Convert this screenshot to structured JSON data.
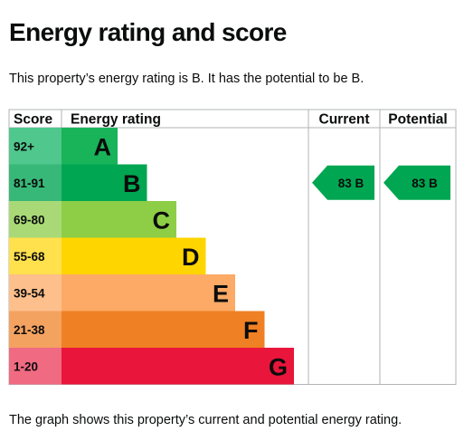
{
  "heading": "Energy rating and score",
  "intro_text": "This property’s energy rating is B. It has the potential to be B.",
  "caption": "The graph shows this property’s current and potential energy rating.",
  "chart_data": {
    "type": "bar",
    "columns": [
      "Score",
      "Energy rating",
      "Current",
      "Potential"
    ],
    "bands": [
      {
        "range": "92+",
        "letter": "A",
        "color": "#19b459",
        "range_color": "#4fc78d"
      },
      {
        "range": "81-91",
        "letter": "B",
        "color": "#00a651",
        "range_color": "#38b878"
      },
      {
        "range": "69-80",
        "letter": "C",
        "color": "#8dce46",
        "range_color": "#a9d977"
      },
      {
        "range": "55-68",
        "letter": "D",
        "color": "#ffd500",
        "range_color": "#ffe04d"
      },
      {
        "range": "39-54",
        "letter": "E",
        "color": "#fcaa65",
        "range_color": "#fdbf8c"
      },
      {
        "range": "21-38",
        "letter": "F",
        "color": "#ef8023",
        "range_color": "#f4a260"
      },
      {
        "range": "1-20",
        "letter": "G",
        "color": "#e9153b",
        "range_color": "#f06a82"
      }
    ],
    "current": {
      "score": 83,
      "rating": "B",
      "label": "83 B",
      "color": "#00a651"
    },
    "potential": {
      "score": 83,
      "rating": "B",
      "label": "83 B",
      "color": "#00a651"
    }
  }
}
